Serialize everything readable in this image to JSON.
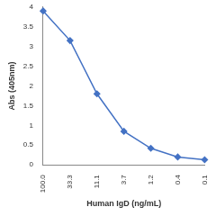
{
  "chart_data": {
    "type": "line",
    "x_label": "Human IgD (ng/mL)",
    "y_label": "Abs (405nm)",
    "categories": [
      "100.0",
      "33.3",
      "11.1",
      "3.7",
      "1.2",
      "0.4",
      "0.1"
    ],
    "values": [
      3.9,
      3.15,
      1.8,
      0.85,
      0.42,
      0.2,
      0.13
    ],
    "color": "#4472c4",
    "marker": "diamond",
    "line_style": "solid",
    "ylim": [
      0,
      4
    ],
    "yticks": [
      0,
      0.5,
      1,
      1.5,
      2,
      2.5,
      3,
      3.5,
      4
    ],
    "grid": false
  }
}
